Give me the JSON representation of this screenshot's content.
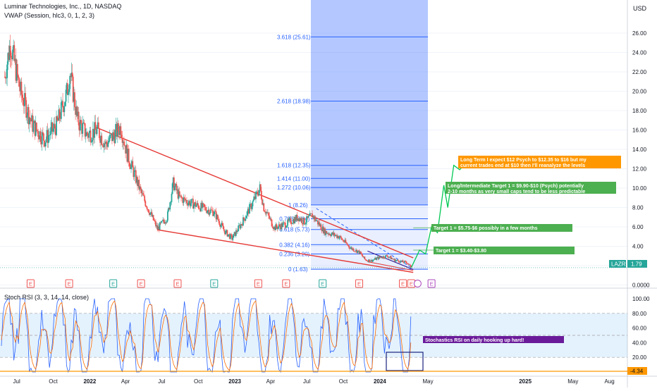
{
  "header": {
    "symbol_line": "Luminar Technologies, Inc., 1D, NASDAQ",
    "indicator_line": "VWAP (Session, hlc3, 0, 1, 2, 3)",
    "currency": "USD"
  },
  "ticker": {
    "symbol": "LAZR",
    "price": "1.79"
  },
  "rsi": {
    "label": "Stoch RSI (3, 3, 14, 14, close)",
    "value_tag": "-4.34",
    "annotation": "Stochastics RSI on daily hooking up hard!"
  },
  "fib_levels": [
    {
      "label": "3.618 (25.61)",
      "value": 25.61
    },
    {
      "label": "2.618 (18.98)",
      "value": 18.98
    },
    {
      "label": "1.618 (12.35)",
      "value": 12.35
    },
    {
      "label": "1.414 (11.00)",
      "value": 11.0
    },
    {
      "label": "1.272 (10.06)",
      "value": 10.06
    },
    {
      "label": "1 (8.26)",
      "value": 8.26
    },
    {
      "label": "0.786 (6.84)",
      "value": 6.84
    },
    {
      "label": "0.618 (5.73)",
      "value": 5.73
    },
    {
      "label": "0.382 (4.16)",
      "value": 4.16
    },
    {
      "label": "0.236 (3.20)",
      "value": 3.2
    },
    {
      "label": "0 (1.63)",
      "value": 1.63
    }
  ],
  "targets": [
    {
      "text": "Long Term I expect $12 Psych to $12.35 to $16 but my current trades end at $10 then I'll reanalyze the levels",
      "color": "#ff9800",
      "value": 12.35
    },
    {
      "text": "Long/Intermediate Target 1 = $9.90-$10 (Psych) potentially 2-10 months as very small caps tend to be less predictable",
      "color": "#4caf50",
      "value": 10.0
    },
    {
      "text": "Target 1 = $5.75-$6 possibly in a few months",
      "color": "#4caf50",
      "value": 5.9
    },
    {
      "text": "Target 1 = $3.40-$3.80",
      "color": "#4caf50",
      "value": 3.6
    }
  ],
  "event_markers": [
    "E",
    "E",
    "E",
    "E",
    "E",
    "E",
    "E",
    "E",
    "E",
    "E",
    "E",
    "E",
    "E"
  ],
  "colors": {
    "fib_zone": "#2962ff",
    "wedge": "#e53935",
    "rsi_k": "#2962ff",
    "rsi_d": "#ff6d00",
    "rsi_band": "#2196f3",
    "up": "#26a69a",
    "down": "#ef5350",
    "target": "#4caf50",
    "long_target": "#ff9800",
    "rsi_annotation": "#6a1b9a"
  },
  "chart_data": [
    {
      "type": "candlestick",
      "title": "Luminar Technologies, Inc., 1D, NASDAQ",
      "y_axis_ticks": [
        "26.00",
        "24.00",
        "22.00",
        "20.00",
        "18.00",
        "16.00",
        "14.00",
        "12.00",
        "10.00",
        "8.00",
        "6.00",
        "4.00",
        "2.00",
        "0.0000"
      ],
      "x_axis_ticks": [
        "Jul",
        "Oct",
        "2022",
        "Apr",
        "Jul",
        "Oct",
        "2023",
        "Apr",
        "Jul",
        "Oct",
        "2024",
        "May",
        "2025",
        "May",
        "Aug"
      ],
      "ylim": [
        -0.5,
        27.5
      ],
      "price_path": {
        "dates": [
          "2021-06-01",
          "2021-06-15",
          "2021-07-10",
          "2021-08-10",
          "2021-09-10",
          "2021-10-10",
          "2021-11-05",
          "2021-11-12",
          "2021-12-01",
          "2021-12-25",
          "2022-01-20",
          "2022-02-10",
          "2022-03-20",
          "2022-04-05",
          "2022-05-10",
          "2022-06-20",
          "2022-07-15",
          "2022-07-30",
          "2022-08-15",
          "2022-09-10",
          "2022-10-10",
          "2022-11-10",
          "2022-12-05",
          "2022-12-25",
          "2023-01-20",
          "2023-02-15",
          "2023-03-05",
          "2023-03-15",
          "2023-04-10",
          "2023-05-10",
          "2023-06-10",
          "2023-06-25",
          "2023-07-15",
          "2023-08-15",
          "2023-09-20",
          "2023-10-20",
          "2023-11-10",
          "2023-11-25",
          "2023-12-10",
          "2023-12-28",
          "2024-01-20",
          "2024-02-05",
          "2024-02-25",
          "2024-03-10",
          "2024-03-20"
        ],
        "close": [
          21.5,
          25.0,
          20.0,
          16.5,
          15.0,
          16.5,
          20.0,
          22.0,
          17.0,
          15.5,
          16.0,
          14.5,
          16.3,
          13.5,
          9.5,
          5.8,
          7.0,
          10.5,
          9.0,
          8.5,
          8.0,
          7.5,
          5.6,
          4.8,
          6.5,
          8.5,
          10.0,
          8.0,
          5.9,
          6.3,
          7.0,
          6.5,
          7.2,
          5.5,
          5.0,
          3.8,
          3.4,
          2.6,
          2.5,
          2.8,
          3.0,
          2.6,
          2.4,
          2.3,
          1.79
        ]
      },
      "projection_path": {
        "dates": [
          "2024-03-20",
          "2024-04-10",
          "2024-04-25",
          "2024-05-10",
          "2024-05-25",
          "2024-06-10",
          "2024-06-20",
          "2024-07-05",
          "2024-07-20",
          "2024-08-05"
        ],
        "close": [
          1.79,
          3.6,
          3.2,
          6.0,
          5.4,
          10.3,
          8.0,
          12.35,
          11.9,
          12.6
        ]
      },
      "lower_pane": {
        "name": "Stoch RSI (3, 3, 14, 14, close)",
        "y_axis_ticks": [
          "100.00",
          "80.00",
          "60.00",
          "40.00",
          "20.00"
        ],
        "ylim": [
          -4.34,
          107
        ],
        "bands": [
          20,
          80
        ],
        "last_value": -4.34
      }
    }
  ]
}
